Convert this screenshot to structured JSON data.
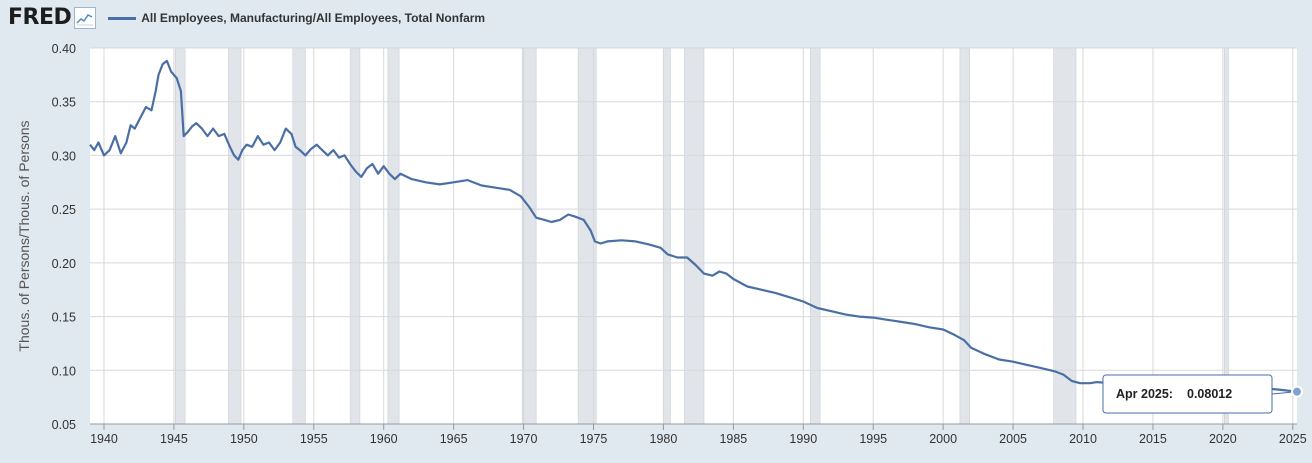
{
  "header": {
    "logo_text": "FRED",
    "legend_label": "All Employees, Manufacturing/All Employees, Total Nonfarm"
  },
  "colors": {
    "series": "#4a6fa5",
    "recession": "#e1e5ea",
    "background": "#e1e9f0",
    "plot_bg": "#ffffff"
  },
  "tooltip": {
    "date": "Apr 2025:",
    "value": "0.08012"
  },
  "chart_data": {
    "type": "line",
    "title": "",
    "xlabel": "",
    "ylabel": "Thous. of Persons/Thous. of Persons",
    "xlim": [
      1939.0,
      2025.3
    ],
    "ylim": [
      0.05,
      0.4
    ],
    "y_ticks": [
      "0.40",
      "0.35",
      "0.30",
      "0.25",
      "0.20",
      "0.15",
      "0.10",
      "0.05"
    ],
    "x_ticks": [
      "1940",
      "1945",
      "1950",
      "1955",
      "1960",
      "1965",
      "1970",
      "1975",
      "1980",
      "1985",
      "1990",
      "1995",
      "2000",
      "2005",
      "2010",
      "2015",
      "2020",
      "2025"
    ],
    "recessions": [
      [
        1945.1,
        1945.8
      ],
      [
        1948.9,
        1949.8
      ],
      [
        1953.5,
        1954.4
      ],
      [
        1957.6,
        1958.3
      ],
      [
        1960.3,
        1961.1
      ],
      [
        1969.9,
        1970.9
      ],
      [
        1973.9,
        1975.2
      ],
      [
        1980.0,
        1980.5
      ],
      [
        1981.5,
        1982.9
      ],
      [
        1990.5,
        1991.2
      ],
      [
        2001.2,
        2001.9
      ],
      [
        2007.9,
        2009.5
      ],
      [
        2020.1,
        2020.4
      ]
    ],
    "series": [
      {
        "x": [
          1939.0,
          1939.3,
          1939.6,
          1940.0,
          1940.4,
          1940.8,
          1941.2,
          1941.6,
          1941.9,
          1942.2,
          1942.6,
          1943.0,
          1943.4,
          1943.7,
          1943.9,
          1944.2,
          1944.5,
          1944.8,
          1945.2,
          1945.5,
          1945.7,
          1946.0,
          1946.3,
          1946.6,
          1947.0,
          1947.4,
          1947.8,
          1948.2,
          1948.6,
          1949.0,
          1949.3,
          1949.6,
          1949.9,
          1950.2,
          1950.6,
          1951.0,
          1951.4,
          1951.8,
          1952.2,
          1952.6,
          1953.0,
          1953.4,
          1953.7,
          1954.0,
          1954.4,
          1954.8,
          1955.2,
          1955.6,
          1956.0,
          1956.4,
          1956.8,
          1957.2,
          1957.6,
          1958.0,
          1958.4,
          1958.8,
          1959.2,
          1959.6,
          1960.0,
          1960.4,
          1960.8,
          1961.2,
          1962.0,
          1963.0,
          1964.0,
          1965.0,
          1966.0,
          1967.0,
          1968.0,
          1969.0,
          1969.8,
          1970.4,
          1970.9,
          1971.5,
          1972.0,
          1972.6,
          1973.2,
          1973.7,
          1974.3,
          1974.8,
          1975.1,
          1975.5,
          1976.0,
          1977.0,
          1978.0,
          1979.0,
          1979.8,
          1980.3,
          1981.0,
          1981.7,
          1982.3,
          1982.9,
          1983.5,
          1984.0,
          1984.5,
          1985.0,
          1986.0,
          1987.0,
          1988.0,
          1989.0,
          1990.0,
          1991.0,
          1992.0,
          1993.0,
          1994.0,
          1995.0,
          1996.0,
          1997.0,
          1998.0,
          1999.0,
          2000.0,
          2000.8,
          2001.5,
          2002.0,
          2003.0,
          2004.0,
          2005.0,
          2006.0,
          2007.0,
          2008.0,
          2008.6,
          2009.2,
          2009.8,
          2010.5,
          2011.0,
          2012.0,
          2013.0,
          2014.0,
          2015.0,
          2016.0,
          2017.0,
          2018.0,
          2019.0,
          2020.0,
          2020.3,
          2020.7,
          2021.0,
          2022.0,
          2023.0,
          2024.0,
          2025.3
        ],
        "values": [
          0.31,
          0.305,
          0.312,
          0.3,
          0.305,
          0.318,
          0.302,
          0.312,
          0.328,
          0.325,
          0.335,
          0.345,
          0.342,
          0.36,
          0.375,
          0.385,
          0.388,
          0.378,
          0.372,
          0.36,
          0.318,
          0.322,
          0.327,
          0.33,
          0.325,
          0.318,
          0.325,
          0.318,
          0.32,
          0.308,
          0.3,
          0.296,
          0.305,
          0.31,
          0.308,
          0.318,
          0.31,
          0.312,
          0.305,
          0.312,
          0.325,
          0.32,
          0.308,
          0.305,
          0.3,
          0.306,
          0.31,
          0.305,
          0.3,
          0.305,
          0.298,
          0.3,
          0.292,
          0.285,
          0.28,
          0.288,
          0.292,
          0.283,
          0.29,
          0.283,
          0.278,
          0.283,
          0.278,
          0.275,
          0.273,
          0.275,
          0.277,
          0.272,
          0.27,
          0.268,
          0.262,
          0.252,
          0.242,
          0.24,
          0.238,
          0.24,
          0.245,
          0.243,
          0.24,
          0.23,
          0.22,
          0.218,
          0.22,
          0.221,
          0.22,
          0.217,
          0.214,
          0.208,
          0.205,
          0.205,
          0.198,
          0.19,
          0.188,
          0.192,
          0.19,
          0.185,
          0.178,
          0.175,
          0.172,
          0.168,
          0.164,
          0.158,
          0.155,
          0.152,
          0.15,
          0.149,
          0.147,
          0.145,
          0.143,
          0.14,
          0.138,
          0.133,
          0.128,
          0.121,
          0.115,
          0.11,
          0.108,
          0.105,
          0.102,
          0.099,
          0.096,
          0.09,
          0.088,
          0.088,
          0.089,
          0.088,
          0.087,
          0.086,
          0.086,
          0.085,
          0.085,
          0.086,
          0.086,
          0.085,
          0.083,
          0.084,
          0.084,
          0.084,
          0.083,
          0.082,
          0.0801
        ]
      }
    ],
    "grid": true,
    "legend": "top-left"
  }
}
